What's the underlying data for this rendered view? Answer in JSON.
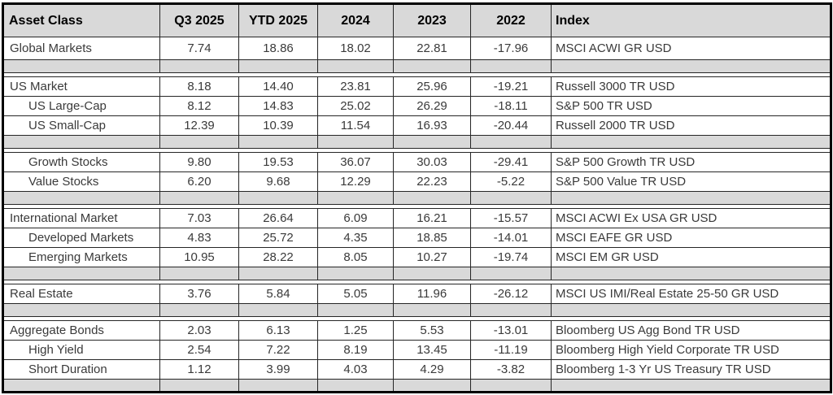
{
  "colors": {
    "header_fill": "#d9d9d9",
    "separator_fill": "#d9d9d9",
    "border": "#262626",
    "outer_border": "#000000",
    "header_text": "#000000",
    "data_text": "#3a3a3a",
    "background": "#ffffff"
  },
  "table": {
    "columns": [
      {
        "key": "asset",
        "label": "Asset Class",
        "align": "left"
      },
      {
        "key": "q3_2025",
        "label": "Q3 2025",
        "align": "center"
      },
      {
        "key": "ytd_2025",
        "label": "YTD 2025",
        "align": "center"
      },
      {
        "key": "y2024",
        "label": "2024",
        "align": "center"
      },
      {
        "key": "y2023",
        "label": "2023",
        "align": "center"
      },
      {
        "key": "y2022",
        "label": "2022",
        "align": "center"
      },
      {
        "key": "index",
        "label": "Index",
        "align": "left"
      }
    ],
    "rows": [
      {
        "type": "data",
        "indent": false,
        "first": true,
        "cells": [
          "Global Markets",
          "7.74",
          "18.86",
          "18.02",
          "22.81",
          "-17.96",
          "MSCI ACWI GR USD"
        ]
      },
      {
        "type": "separator"
      },
      {
        "type": "gap"
      },
      {
        "type": "data",
        "indent": false,
        "cells": [
          "US Market",
          "8.18",
          "14.40",
          "23.81",
          "25.96",
          "-19.21",
          "Russell 3000 TR USD"
        ]
      },
      {
        "type": "data",
        "indent": true,
        "cells": [
          "US Large-Cap",
          "8.12",
          "14.83",
          "25.02",
          "26.29",
          "-18.11",
          "S&P 500 TR USD"
        ]
      },
      {
        "type": "data",
        "indent": true,
        "cells": [
          "US Small-Cap",
          "12.39",
          "10.39",
          "11.54",
          "16.93",
          "-20.44",
          "Russell 2000 TR USD"
        ]
      },
      {
        "type": "separator"
      },
      {
        "type": "gap"
      },
      {
        "type": "data",
        "indent": true,
        "cells": [
          "Growth Stocks",
          "9.80",
          "19.53",
          "36.07",
          "30.03",
          "-29.41",
          "S&P 500 Growth TR USD"
        ]
      },
      {
        "type": "data",
        "indent": true,
        "cells": [
          "Value Stocks",
          "6.20",
          "9.68",
          "12.29",
          "22.23",
          "-5.22",
          "S&P 500 Value TR USD"
        ]
      },
      {
        "type": "separator"
      },
      {
        "type": "gap"
      },
      {
        "type": "data",
        "indent": false,
        "cells": [
          "International Market",
          "7.03",
          "26.64",
          "6.09",
          "16.21",
          "-15.57",
          "MSCI ACWI Ex USA GR USD"
        ]
      },
      {
        "type": "data",
        "indent": true,
        "cells": [
          "Developed Markets",
          "4.83",
          "25.72",
          "4.35",
          "18.85",
          "-14.01",
          "MSCI EAFE GR USD"
        ]
      },
      {
        "type": "data",
        "indent": true,
        "cells": [
          "Emerging Markets",
          "10.95",
          "28.22",
          "8.05",
          "10.27",
          "-19.74",
          "MSCI EM GR USD"
        ]
      },
      {
        "type": "separator"
      },
      {
        "type": "gap"
      },
      {
        "type": "data",
        "indent": false,
        "cells": [
          "Real Estate",
          "3.76",
          "5.84",
          "5.05",
          "11.96",
          "-26.12",
          "MSCI US IMI/Real Estate 25-50 GR USD"
        ]
      },
      {
        "type": "separator"
      },
      {
        "type": "gap"
      },
      {
        "type": "data",
        "indent": false,
        "cells": [
          "Aggregate Bonds",
          "2.03",
          "6.13",
          "1.25",
          "5.53",
          "-13.01",
          "Bloomberg US Agg Bond TR USD"
        ]
      },
      {
        "type": "data",
        "indent": true,
        "cells": [
          "High Yield",
          "2.54",
          "7.22",
          "8.19",
          "13.45",
          "-11.19",
          "Bloomberg High Yield Corporate TR USD"
        ]
      },
      {
        "type": "data",
        "indent": true,
        "cells": [
          "Short Duration",
          "1.12",
          "3.99",
          "4.03",
          "4.29",
          "-3.82",
          "Bloomberg 1-3 Yr US Treasury TR USD"
        ]
      },
      {
        "type": "separator"
      }
    ]
  }
}
